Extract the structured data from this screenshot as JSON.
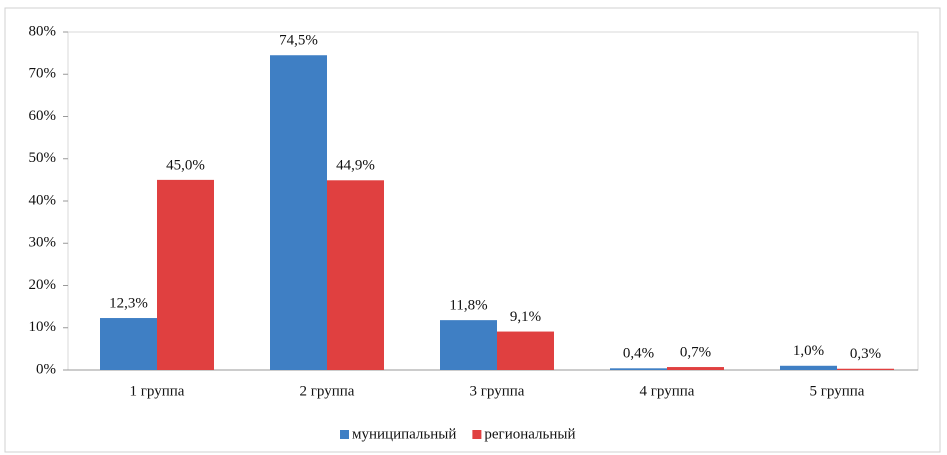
{
  "chart_data": {
    "type": "bar",
    "categories": [
      "1 группа",
      "2 группа",
      "3 группа",
      "4 группа",
      "5 группа"
    ],
    "series": [
      {
        "name": "муниципальный",
        "color": "#3f7fc4",
        "values": [
          12.3,
          74.5,
          11.8,
          0.4,
          1.0
        ],
        "value_labels": [
          "12,3%",
          "74,5%",
          "11,8%",
          "0,4%",
          "1,0%"
        ]
      },
      {
        "name": "региональный",
        "color": "#e04040",
        "values": [
          45.0,
          44.9,
          9.1,
          0.7,
          0.3
        ],
        "value_labels": [
          "45,0%",
          "44,9%",
          "9,1%",
          "0,7%",
          "0,3%"
        ]
      }
    ],
    "ylim": [
      0,
      80
    ],
    "yticks": [
      {
        "value": 0,
        "label": "0%"
      },
      {
        "value": 10,
        "label": "10%"
      },
      {
        "value": 20,
        "label": "20%"
      },
      {
        "value": 30,
        "label": "30%"
      },
      {
        "value": 40,
        "label": "40%"
      },
      {
        "value": 50,
        "label": "50%"
      },
      {
        "value": 60,
        "label": "60%"
      },
      {
        "value": 70,
        "label": "70%"
      },
      {
        "value": 80,
        "label": "80%"
      }
    ],
    "legend": "bottom",
    "grid": false
  }
}
